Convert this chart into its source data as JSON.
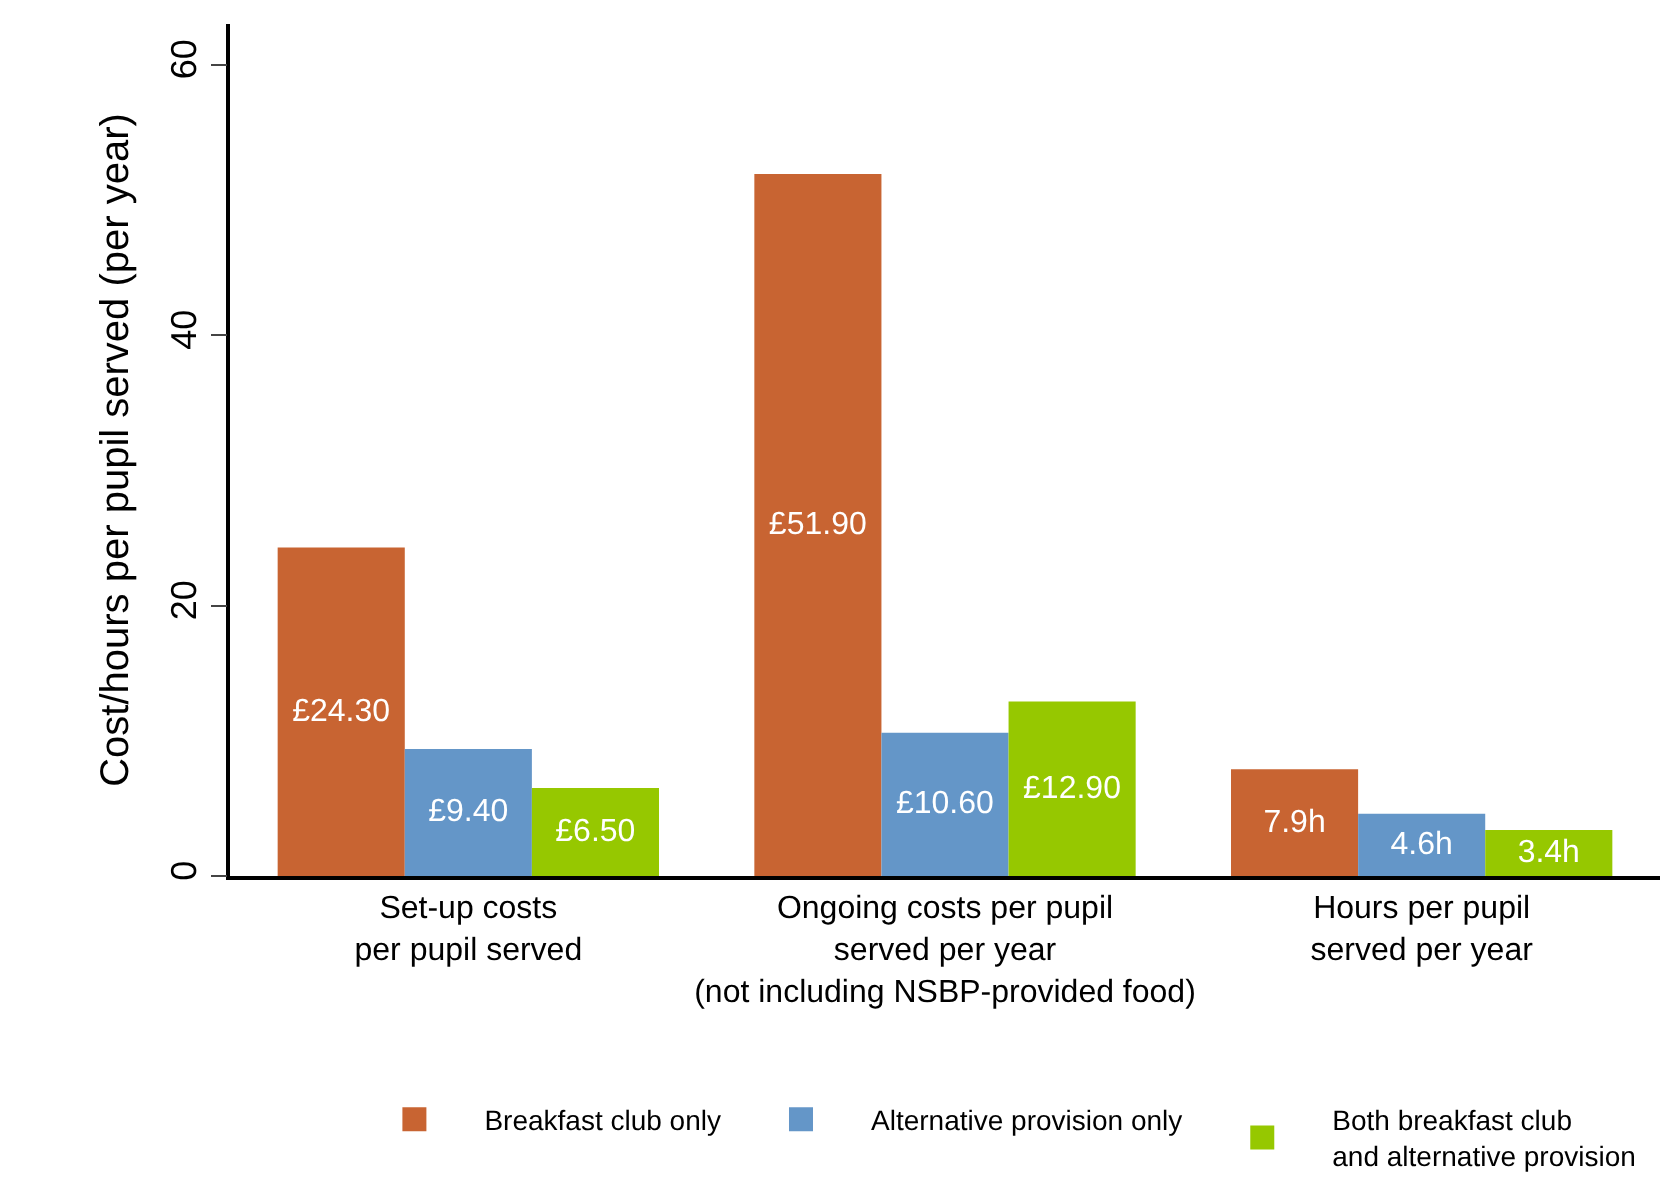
{
  "chart_data": {
    "type": "bar",
    "ylabel": "Cost/hours per pupil served (per year)",
    "categories": [
      "Set-up costs\nper pupil served",
      "Ongoing costs per pupil\nserved per year\n(not including NSBP-provided food)",
      "Hours per pupil\nserved per year"
    ],
    "series": [
      {
        "name": "Breakfast club only",
        "color": "#c86432",
        "values": [
          24.3,
          51.9,
          7.9
        ],
        "value_labels": [
          "£24.30",
          "£51.90",
          "7.9h"
        ]
      },
      {
        "name": "Alternative provision only",
        "color": "#6496c8",
        "values": [
          9.4,
          10.6,
          4.6
        ],
        "value_labels": [
          "£9.40",
          "£10.60",
          "4.6h"
        ]
      },
      {
        "name": "Both breakfast club\nand alternative provision",
        "color": "#96c800",
        "values": [
          6.5,
          12.9,
          3.4
        ],
        "value_labels": [
          "£6.50",
          "£12.90",
          "3.4h"
        ]
      }
    ],
    "ylim": [
      0,
      63
    ],
    "yticks": [
      0,
      20,
      40,
      60
    ],
    "grid": false,
    "legend": "bottom"
  }
}
